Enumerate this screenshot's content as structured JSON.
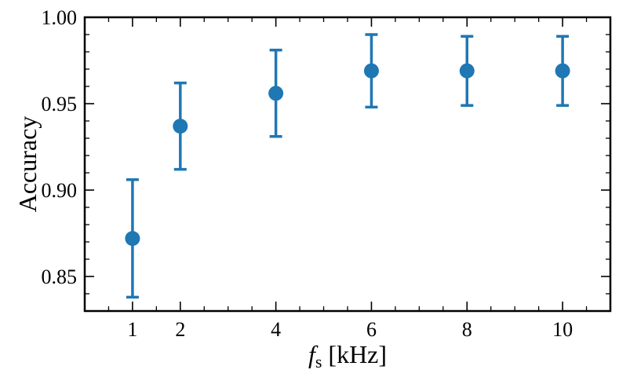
{
  "chart_data": {
    "type": "scatter",
    "x": [
      1,
      2,
      4,
      6,
      8,
      10
    ],
    "y": [
      0.872,
      0.937,
      0.956,
      0.969,
      0.969,
      0.969
    ],
    "y_err_lower": [
      0.838,
      0.912,
      0.931,
      0.948,
      0.949,
      0.949
    ],
    "y_err_upper": [
      0.906,
      0.962,
      0.981,
      0.99,
      0.989,
      0.989
    ],
    "xlabel_main": "f",
    "xlabel_sub": "s",
    "xlabel_unit": " [kHz]",
    "ylabel": "Accuracy",
    "x_ticks": [
      1,
      2,
      4,
      6,
      8,
      10
    ],
    "x_tick_labels": [
      "1",
      "2",
      "4",
      "6",
      "8",
      "10"
    ],
    "y_ticks": [
      0.85,
      0.9,
      0.95,
      1.0
    ],
    "y_tick_labels": [
      "0.85",
      "0.90",
      "0.95",
      "1.00"
    ],
    "xlim": [
      0,
      11
    ],
    "ylim": [
      0.83,
      1.0
    ],
    "grid": false,
    "color": "#1f77b4"
  }
}
